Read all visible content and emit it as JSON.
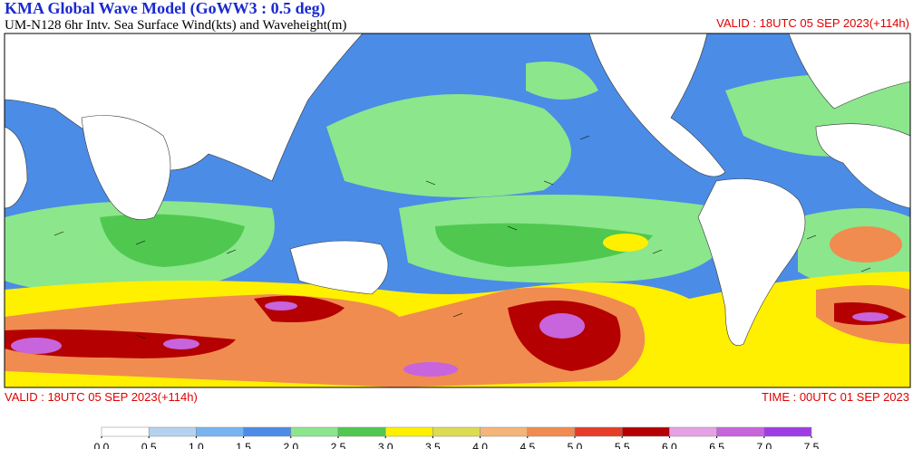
{
  "header": {
    "title": "KMA  Global Wave Model (GoWW3 : 0.5 deg)",
    "subtitle": "UM-N128  6hr Intv. Sea Surface Wind(kts) and Waveheight(m)",
    "valid": "VALID : 18UTC 05 SEP 2023(+114h)"
  },
  "footer": {
    "valid": "VALID : 18UTC 05 SEP 2023(+114h)",
    "time": "TIME : 00UTC 01 SEP 2023"
  },
  "colorbar": {
    "ticks": [
      {
        "value": 0,
        "label": "0.0"
      },
      {
        "value": 0.5,
        "label": "0.5"
      },
      {
        "value": 1,
        "label": "1.0"
      },
      {
        "value": 1.5,
        "label": "1.5"
      },
      {
        "value": 2,
        "label": "2.0"
      },
      {
        "value": 2.5,
        "label": "2.5"
      },
      {
        "value": 3,
        "label": "3.0"
      },
      {
        "value": 3.5,
        "label": "3.5"
      },
      {
        "value": 4,
        "label": "4.0"
      },
      {
        "value": 4.5,
        "label": "4.5"
      },
      {
        "value": 5,
        "label": "5.0"
      },
      {
        "value": 5.5,
        "label": "5.5"
      },
      {
        "value": 6,
        "label": "6.0"
      },
      {
        "value": 6.5,
        "label": "6.5"
      },
      {
        "value": 7,
        "label": "7.0"
      },
      {
        "value": 7.5,
        "label": "7.5"
      }
    ],
    "colors": [
      "#ffffff",
      "#b4d2f0",
      "#78b4f0",
      "#4b8ce6",
      "#8ce68c",
      "#50c850",
      "#fff000",
      "#dcdc50",
      "#f5b478",
      "#f08c50",
      "#e63c28",
      "#b40000",
      "#e6a0e6",
      "#c864dc",
      "#a03ce6"
    ]
  }
}
